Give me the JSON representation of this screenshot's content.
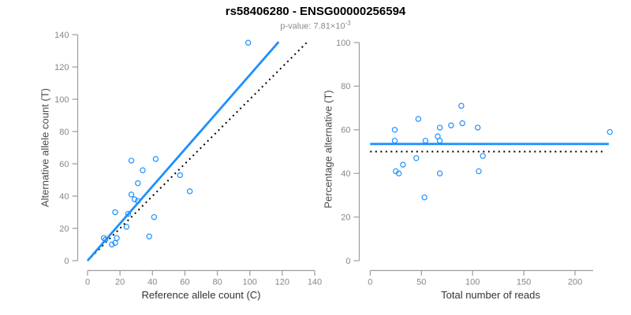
{
  "header": {
    "title": "rs58406280 - ENSG00000256594",
    "subtitle_base": "p-value: 7.81×10",
    "subtitle_exponent": "-3"
  },
  "colors": {
    "accent_blue": "#1E90FF",
    "reference_black": "#000000",
    "axis_line": "#9c9c9c",
    "tick_label": "#878787",
    "axis_title": "#3a3a3a",
    "subtitle_gray": "#8a8a8a"
  },
  "chart_data": [
    {
      "type": "scatter",
      "name": "allele-counts-scatter",
      "xlabel": "Reference allele count (C)",
      "ylabel": "Alternative allele count (T)",
      "xlim": [
        0,
        140
      ],
      "ylim": [
        0,
        140
      ],
      "xticks": [
        0,
        20,
        40,
        60,
        80,
        100,
        120,
        140
      ],
      "yticks": [
        0,
        20,
        40,
        60,
        80,
        100,
        120,
        140
      ],
      "grid": false,
      "points": [
        [
          99,
          135
        ],
        [
          42,
          63
        ],
        [
          27,
          62
        ],
        [
          34,
          56
        ],
        [
          57,
          53
        ],
        [
          31,
          48
        ],
        [
          63,
          43
        ],
        [
          27,
          41
        ],
        [
          29,
          38
        ],
        [
          31,
          37
        ],
        [
          17,
          30
        ],
        [
          25,
          29
        ],
        [
          41,
          27
        ],
        [
          24,
          21
        ],
        [
          38,
          15
        ],
        [
          18,
          14
        ],
        [
          10,
          14
        ],
        [
          11,
          13
        ],
        [
          17,
          11
        ],
        [
          15,
          10
        ]
      ],
      "fit_line": {
        "x1": 0,
        "y1": 0,
        "x2": 117.8,
        "y2": 135.5,
        "style": "solid",
        "meaning": "regression fit"
      },
      "reference_line": {
        "x1": 0,
        "y1": 0,
        "x2": 135,
        "y2": 135,
        "style": "dotted",
        "meaning": "identity y=x"
      }
    },
    {
      "type": "scatter",
      "name": "reads-vs-percentage-scatter",
      "xlabel": "Total number of reads",
      "ylabel": "Percentage alternative (T)",
      "xlim": [
        0,
        235
      ],
      "ylim": [
        0,
        100
      ],
      "xticks": [
        0,
        50,
        100,
        150,
        200
      ],
      "yticks": [
        0,
        20,
        40,
        60,
        80,
        100
      ],
      "grid": false,
      "points": [
        [
          234,
          59
        ],
        [
          105,
          61
        ],
        [
          89,
          71
        ],
        [
          90,
          63
        ],
        [
          110,
          48
        ],
        [
          79,
          62
        ],
        [
          106,
          41
        ],
        [
          68,
          61
        ],
        [
          66,
          57
        ],
        [
          68,
          55
        ],
        [
          47,
          65
        ],
        [
          54,
          55
        ],
        [
          68,
          40
        ],
        [
          45,
          47
        ],
        [
          53,
          29
        ],
        [
          32,
          44
        ],
        [
          24,
          60
        ],
        [
          24,
          55
        ],
        [
          28,
          40
        ],
        [
          25,
          41
        ]
      ],
      "fit_line": {
        "x1": 0,
        "y1": 53.5,
        "x2": 233,
        "y2": 53.5,
        "style": "solid",
        "meaning": "mean percentage"
      },
      "reference_line": {
        "x1": 0,
        "y1": 50,
        "x2": 230,
        "y2": 50,
        "style": "dotted",
        "meaning": "50% null line"
      }
    }
  ]
}
